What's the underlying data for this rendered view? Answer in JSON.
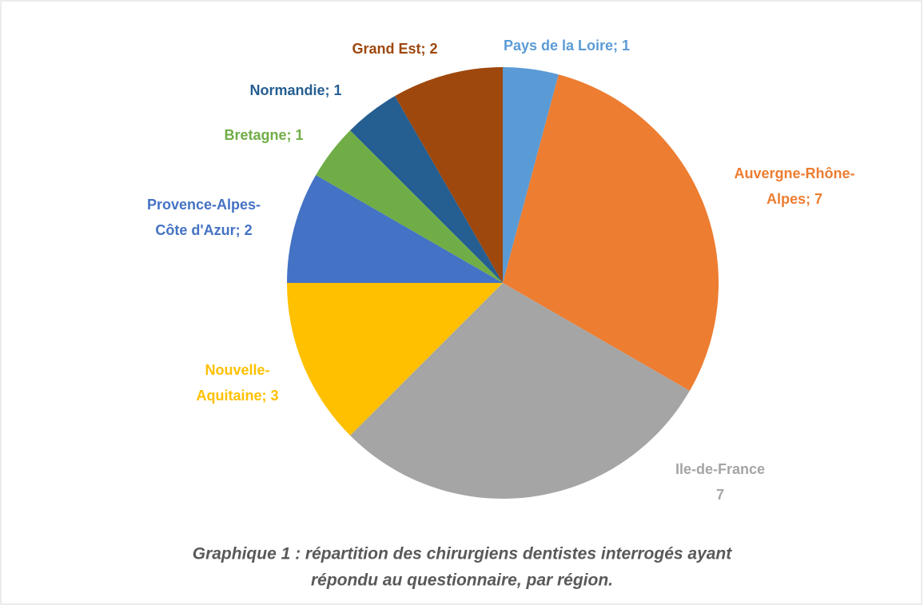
{
  "chart_data": {
    "type": "pie",
    "labels": [
      [
        "Pays de la Loire; 1"
      ],
      [
        "Auvergne-Rhône-",
        "Alpes; 7"
      ],
      [
        "Ile-de-France",
        "7"
      ],
      [
        "Nouvelle-",
        "Aquitaine; 3"
      ],
      [
        "Provence-Alpes-",
        "Côte d'Azur; 2"
      ],
      [
        "Bretagne; 1"
      ],
      [
        "Normandie; 1"
      ],
      [
        "Grand Est; 2"
      ]
    ],
    "values": [
      1,
      7,
      7,
      3,
      2,
      1,
      1,
      2
    ],
    "colors": [
      "#5b9bd5",
      "#ed7d31",
      "#a5a5a5",
      "#ffc000",
      "#4472c4",
      "#70ad47",
      "#255e91",
      "#9e480e"
    ],
    "caption": [
      "Graphique 1 : répartition des chirurgiens dentistes interrogés ayant",
      "répondu au questionnaire, par région."
    ]
  }
}
